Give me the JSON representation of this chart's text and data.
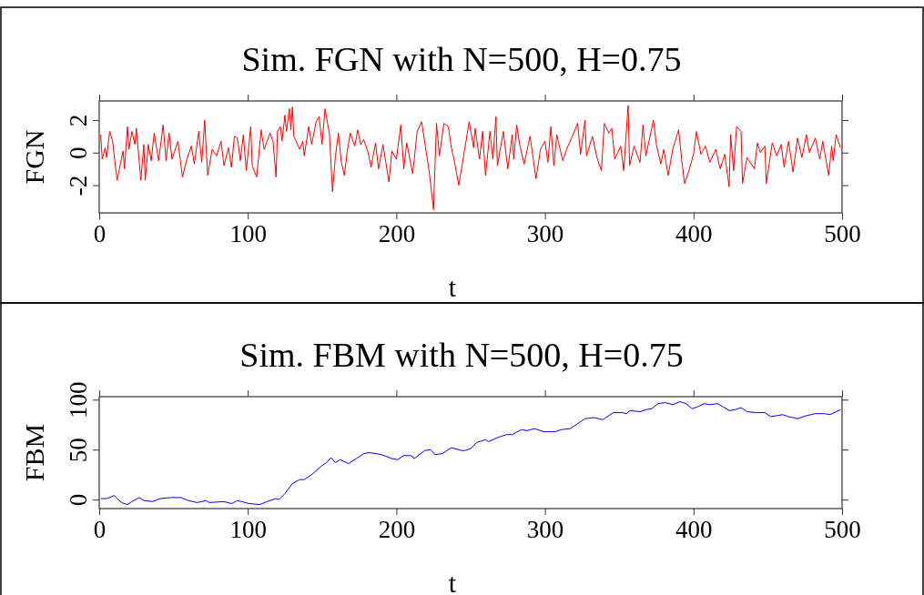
{
  "chart_data": [
    {
      "type": "line",
      "title": "Sim. FGN with N=500, H=0.75",
      "xlabel": "t",
      "ylabel": "FGN",
      "xlim": [
        0,
        500
      ],
      "xticks": [
        0,
        100,
        200,
        300,
        400,
        500
      ],
      "ylim": [
        -3.7,
        3.17
      ],
      "yticks": [
        -2,
        0,
        2
      ],
      "x": [
        1,
        2,
        4,
        5,
        7,
        9,
        12,
        14,
        16,
        17,
        19,
        20,
        22,
        24,
        25,
        28,
        30,
        31,
        33,
        35,
        37,
        40,
        43,
        45,
        47,
        49,
        53,
        56,
        59,
        62,
        64,
        67,
        69,
        71,
        73,
        76,
        79,
        82,
        84,
        87,
        89,
        91,
        93,
        95,
        97,
        99,
        102,
        103,
        106,
        109,
        111,
        115,
        117,
        119,
        120,
        122,
        123,
        125,
        126,
        128,
        129,
        130,
        131,
        135,
        137,
        138,
        141,
        143,
        146,
        148,
        150,
        152,
        155,
        157,
        159,
        161,
        163,
        165,
        167,
        169,
        172,
        174,
        176,
        178,
        181,
        183,
        186,
        188,
        191,
        195,
        197,
        200,
        203,
        205,
        207,
        211,
        214,
        217,
        222,
        225,
        227,
        229,
        232,
        235,
        237,
        239,
        242,
        246,
        249,
        252,
        253,
        256,
        258,
        260,
        263,
        265,
        267,
        268,
        272,
        275,
        278,
        279,
        281,
        283,
        286,
        290,
        294,
        297,
        300,
        302,
        304,
        306,
        308,
        312,
        315,
        318,
        322,
        324,
        327,
        328,
        332,
        335,
        338,
        340,
        343,
        345,
        347,
        351,
        353,
        356,
        357,
        360,
        364,
        366,
        368,
        373,
        375,
        378,
        380,
        383,
        386,
        390,
        392,
        394,
        397,
        400,
        402,
        405,
        408,
        411,
        415,
        418,
        421,
        424,
        425,
        427,
        429,
        432,
        433,
        436,
        441,
        443,
        445,
        448,
        449,
        453,
        456,
        459,
        461,
        464,
        467,
        470,
        473,
        476,
        478,
        482,
        485,
        487,
        491,
        493,
        494,
        496,
        499
      ],
      "series": [
        {
          "color": "#ff0000",
          "values": [
            1.1,
            -0.4,
            0.3,
            -0.3,
            1.3,
            0.7,
            -1.7,
            -0.8,
            0.1,
            -1.0,
            1.6,
            0.2,
            1.3,
            0.5,
            1.5,
            -1.7,
            0.5,
            -1.7,
            0.5,
            -0.5,
            1.2,
            -0.5,
            1.7,
            -0.5,
            1.2,
            -0.4,
            0.7,
            -1.5,
            -0.4,
            0.4,
            -0.7,
            1.3,
            -0.6,
            2.0,
            -1.4,
            0.2,
            -0.2,
            0.7,
            -0.8,
            0.3,
            -0.9,
            1.0,
            0.9,
            -0.5,
            1.1,
            -1.1,
            1.6,
            -0.8,
            -1.5,
            1.4,
            0.2,
            1.2,
            0.7,
            -1.5,
            1.3,
            1.6,
            0.7,
            2.3,
            1.3,
            2.7,
            1.4,
            2.8,
            1.0,
            0.2,
            0.7,
            -0.2,
            1.6,
            0.5,
            1.9,
            2.2,
            0.5,
            2.7,
            1.1,
            -2.4,
            -0.2,
            1.2,
            -0.6,
            -1.4,
            0.1,
            1.2,
            0.4,
            1.4,
            0.5,
            0.8,
            0.0,
            -0.9,
            0.6,
            -1.0,
            0.5,
            -1.8,
            0.1,
            -0.4,
            1.7,
            -1.0,
            0.6,
            -1.3,
            1.3,
            1.9,
            -1.1,
            -3.5,
            1.8,
            -0.2,
            1.8,
            1.6,
            0.3,
            -0.5,
            -2.0,
            0.2,
            1.9,
            0.3,
            1.5,
            -0.4,
            1.3,
            -1.4,
            1.3,
            -0.4,
            2.2,
            -0.8,
            1.3,
            -1.0,
            1.1,
            -0.4,
            1.7,
            0.5,
            -0.7,
            1.0,
            -1.6,
            0.2,
            0.7,
            -0.6,
            1.6,
            -0.8,
            1.1,
            -0.5,
            0.3,
            0.9,
            1.8,
            -0.1,
            2.0,
            -0.2,
            1.0,
            -0.3,
            -1.1,
            1.8,
            1.2,
            1.5,
            -0.4,
            0.4,
            -1.1,
            2.9,
            -0.8,
            0.4,
            -0.6,
            1.7,
            -0.2,
            2.0,
            0.5,
            -0.7,
            0.2,
            -1.4,
            0.2,
            1.4,
            -0.4,
            -1.9,
            -1.1,
            -0.1,
            1.3,
            -0.1,
            0.4,
            -0.6,
            0.2,
            -1.0,
            -0.1,
            -2.1,
            1.1,
            -1.1,
            1.6,
            1.3,
            -1.9,
            -0.3,
            -1.0,
            0.6,
            0.0,
            0.4,
            -1.9,
            0.6,
            -0.2,
            0.5,
            -0.9,
            0.7,
            -1.2,
            0.9,
            -0.3,
            1.1,
            0.0,
            0.9,
            -0.4,
            0.7,
            -1.4,
            0.4,
            -0.5,
            1.1,
            0.3
          ]
        }
      ]
    },
    {
      "type": "line",
      "title": "Sim. FBM with N=500, H=0.75",
      "xlabel": "t",
      "ylabel": "FBM",
      "xlim": [
        0,
        500
      ],
      "xticks": [
        0,
        100,
        200,
        300,
        400,
        500
      ],
      "ylim": [
        -9,
        103
      ],
      "yticks": [
        0,
        50,
        100
      ],
      "x": [
        1,
        5,
        10,
        15,
        19,
        22,
        27,
        30,
        36,
        41,
        48,
        55,
        60,
        66,
        72,
        74,
        84,
        89,
        93,
        101,
        108,
        113,
        119,
        121,
        125,
        130,
        135,
        138,
        143,
        150,
        153,
        156,
        159,
        162,
        168,
        173,
        178,
        182,
        190,
        197,
        201,
        205,
        210,
        212,
        219,
        223,
        226,
        231,
        237,
        244,
        246,
        250,
        254,
        260,
        262,
        268,
        274,
        278,
        284,
        288,
        293,
        299,
        307,
        311,
        317,
        321,
        327,
        333,
        339,
        346,
        352,
        355,
        357,
        364,
        368,
        372,
        376,
        381,
        386,
        391,
        395,
        399,
        403,
        407,
        411,
        416,
        421,
        424,
        428,
        432,
        436,
        442,
        448,
        452,
        460,
        464,
        470,
        476,
        482,
        488,
        492,
        499
      ],
      "series": [
        {
          "color": "#0000ff",
          "values": [
            1,
            1,
            4,
            -3,
            -5,
            -2,
            2,
            -1,
            -2,
            1,
            2,
            2,
            -1,
            -3,
            -1,
            -3,
            -2,
            -4,
            -1,
            -4,
            -5,
            -2,
            1,
            0,
            6,
            16,
            20,
            20,
            25,
            34,
            37,
            42,
            37,
            40,
            36,
            41,
            46,
            47,
            45,
            41,
            40,
            44,
            44,
            41,
            49,
            50,
            45,
            46,
            52,
            49,
            49,
            51,
            57,
            60,
            58,
            62,
            65,
            65,
            70,
            69,
            71,
            68,
            68,
            70,
            71,
            75,
            81,
            82,
            80,
            87,
            87,
            86,
            89,
            88,
            90,
            91,
            96,
            97,
            95,
            98,
            96,
            91,
            93,
            96,
            95,
            96,
            92,
            89,
            90,
            92,
            88,
            87,
            87,
            83,
            85,
            83,
            81,
            84,
            86,
            86,
            85,
            90
          ]
        }
      ]
    }
  ]
}
